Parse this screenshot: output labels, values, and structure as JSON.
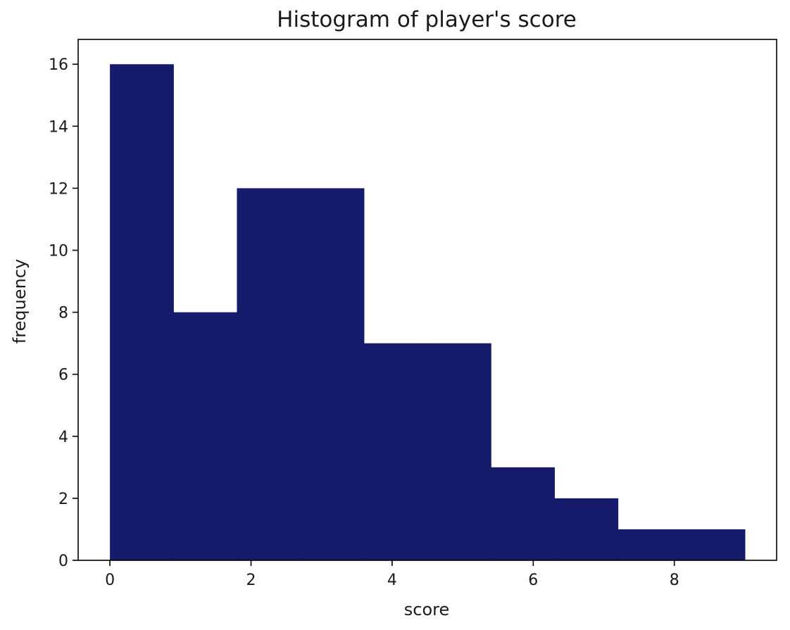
{
  "chart_data": {
    "type": "bar",
    "title": "Histogram of player's score",
    "xlabel": "score",
    "ylabel": "frequency",
    "bin_edges": [
      0,
      0.9,
      1.8,
      2.7,
      3.6,
      4.5,
      5.4,
      6.3,
      7.2,
      8.1,
      9.0
    ],
    "values": [
      16,
      8,
      12,
      12,
      7,
      7,
      3,
      2,
      1,
      1
    ],
    "xlim": [
      -0.45,
      9.45
    ],
    "ylim": [
      0,
      16.8
    ],
    "xticks": [
      0,
      2,
      4,
      6,
      8
    ],
    "yticks": [
      0,
      2,
      4,
      6,
      8,
      10,
      12,
      14,
      16
    ],
    "bar_color": "#151a6b",
    "grid": false,
    "legend": "none"
  }
}
